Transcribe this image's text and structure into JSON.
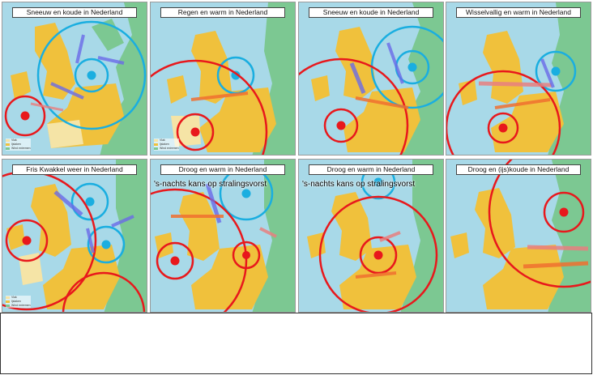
{
  "colors": {
    "sea": "#a8d9e8",
    "land_yellow": "#f0c13c",
    "land_green": "#7cc892",
    "land_pale": "#f5e4a6",
    "high_pressure": "#1aaee0",
    "low_pressure": "#e8181c"
  },
  "legend": {
    "items": [
      {
        "label": "Vlak",
        "color": "#f5e4a6"
      },
      {
        "label": "Ijslaken",
        "color": "#f0c13c"
      },
      {
        "label": "Wind extremen",
        "color": "#7cc892"
      }
    ]
  },
  "panels": [
    {
      "title": "Sneeuw en koude in Nederland",
      "note": "",
      "show_legend": true
    },
    {
      "title": "Regen en warm in Nederland",
      "note": "",
      "show_legend": true
    },
    {
      "title": "Sneeuw en koude in Nederland",
      "note": "",
      "show_legend": false
    },
    {
      "title": "Wisselvallig en warm in Nederland",
      "note": "",
      "show_legend": false
    },
    {
      "title": "Fris Kwakkel weer in Nederland",
      "note": "",
      "show_legend": true
    },
    {
      "title": "Droog en warm in Nederland",
      "note": "'s-nachts kans op stralingsvorst",
      "show_legend": false
    },
    {
      "title": "Droog en warm in Nederland",
      "note": "'s-nachts kans op stralingsvorst",
      "show_legend": false
    },
    {
      "title": "Droog en (ijs)koude in Nederland",
      "note": "",
      "show_legend": false
    }
  ]
}
